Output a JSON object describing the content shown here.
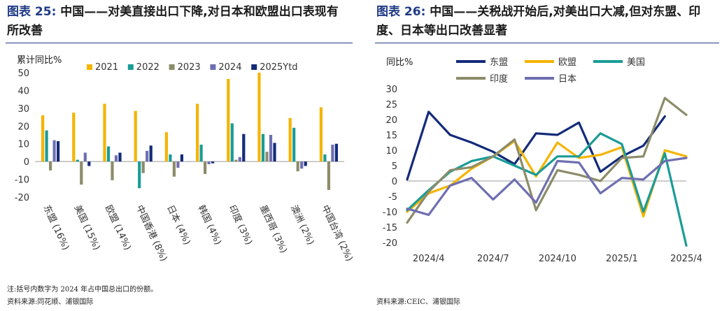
{
  "left": {
    "title_label": "图表 25:",
    "title_text": "中国——对美直接出口下降,对日本和欧盟出口表现有所改善",
    "note": "注:括号内数字为 2024 年占中国总出口的份额。",
    "source": "资料来源:同花顺、浦银国际",
    "chart_data": {
      "type": "bar",
      "ylabel": "累计同比%",
      "ylim": [
        -20,
        50
      ],
      "yticks": [
        -20,
        -10,
        0,
        10,
        20,
        30,
        40,
        50
      ],
      "categories": [
        "东盟 (16%)",
        "美国 (15%)",
        "欧盟 (14%)",
        "中国香港 (8%)",
        "日本 (4%)",
        "韩国 (4%)",
        "印度 (3%)",
        "墨西哥 (3%)",
        "澳洲 (2%)",
        "中国台湾 (2%)"
      ],
      "series": [
        {
          "name": "2021",
          "color": "#f5b400",
          "values": [
            26,
            27.5,
            32.5,
            28.5,
            16.5,
            32.5,
            46.5,
            50,
            24.5,
            30.5
          ]
        },
        {
          "name": "2022",
          "color": "#1a9c97",
          "values": [
            17.5,
            1,
            8.5,
            -15,
            4,
            9.5,
            21.5,
            15.5,
            19,
            4
          ]
        },
        {
          "name": "2023",
          "color": "#8c8c6a",
          "values": [
            -5,
            -13,
            -10.5,
            -6.5,
            -8.5,
            -7,
            1,
            5.5,
            -5.5,
            -16
          ]
        },
        {
          "name": "2024",
          "color": "#6e6fb0",
          "values": [
            12,
            5,
            3.5,
            6,
            -3.5,
            -1.5,
            2.5,
            15,
            -4,
            9.5
          ]
        },
        {
          "name": "2025Ytd",
          "color": "#132b7a",
          "values": [
            11.5,
            -2.5,
            5,
            9,
            4,
            -1,
            15.5,
            10.5,
            -2.5,
            10
          ]
        }
      ]
    }
  },
  "right": {
    "title_label": "图表 26:",
    "title_text": "中国——关税战开始后,对美出口大减,但对东盟、印度、日本等出口改善显著",
    "source": "资料来源:CEIC、浦银国际",
    "chart_data": {
      "type": "line",
      "ylabel": "同比%",
      "ylim": [
        -20,
        30
      ],
      "yticks": [
        -20,
        -15,
        -10,
        -5,
        0,
        5,
        10,
        15,
        20,
        25,
        30
      ],
      "x": [
        "2024/3",
        "2024/4",
        "2024/5",
        "2024/6",
        "2024/7",
        "2024/8",
        "2024/9",
        "2024/10",
        "2024/11",
        "2024/12",
        "2025/1",
        "2025/2",
        "2025/3",
        "2025/4"
      ],
      "xtick_labels": [
        "2024/4",
        "2024/7",
        "2024/10",
        "2025/1",
        "2025/4"
      ],
      "series": [
        {
          "name": "东盟",
          "color": "#132b7a",
          "values": [
            0.5,
            22.5,
            15,
            12.5,
            9.5,
            5.5,
            15.5,
            15,
            19,
            3,
            8,
            11.5,
            21,
            null
          ]
        },
        {
          "name": "欧盟",
          "color": "#f5b400",
          "values": [
            -10,
            -4,
            -1.5,
            4,
            8,
            13,
            1.5,
            12.5,
            7.5,
            8.5,
            11,
            -11.5,
            10,
            8
          ]
        },
        {
          "name": "美国",
          "color": "#1a9c97",
          "values": [
            -9.5,
            -3,
            3,
            6.5,
            8,
            5,
            2,
            8,
            8,
            15.5,
            12,
            -10,
            9,
            -21
          ]
        },
        {
          "name": "印度",
          "color": "#8c8c6a",
          "values": [
            -13.5,
            -3.5,
            3.5,
            4.5,
            8,
            13.5,
            -9.5,
            3.5,
            2,
            0,
            7.5,
            8,
            27,
            21.5
          ]
        },
        {
          "name": "日本",
          "color": "#6e6fb0",
          "values": [
            -9,
            -11,
            -1.5,
            1,
            -6,
            0.5,
            -7,
            6.5,
            6,
            -4,
            1,
            0.5,
            6.5,
            7.5
          ]
        }
      ]
    }
  }
}
